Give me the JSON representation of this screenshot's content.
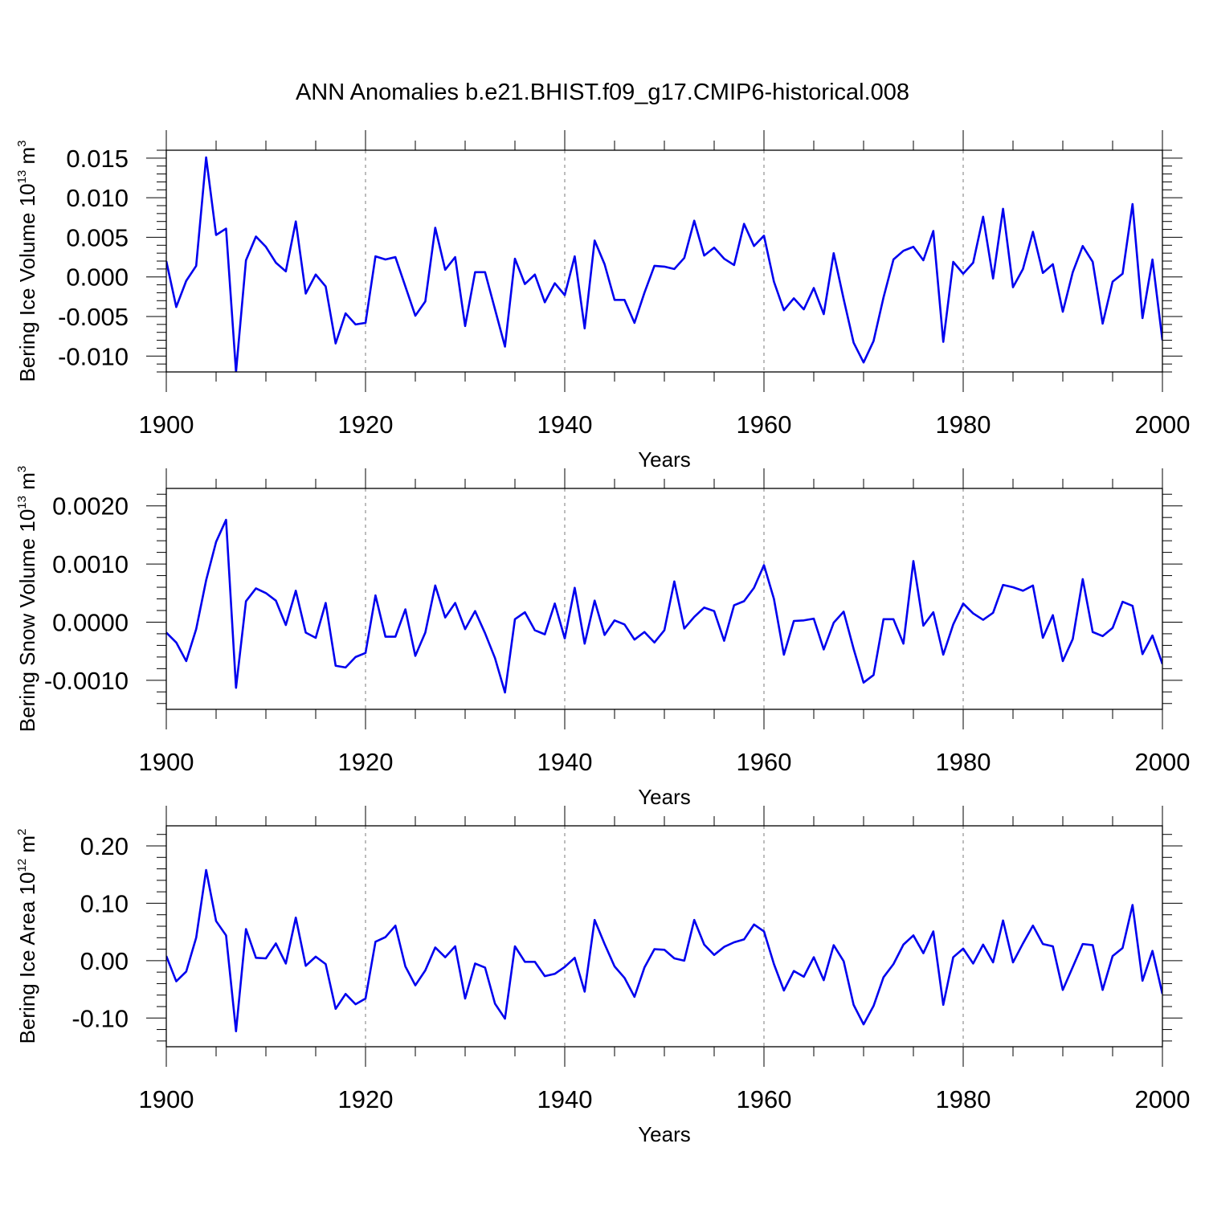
{
  "title": "ANN Anomalies b.e21.BHIST.f09_g17.CMIP6-historical.008",
  "line_color": "#0000ee",
  "chart_data": [
    {
      "type": "line",
      "ylabel": "Bering Ice Volume 10",
      "ylabel_exp": "13",
      "ylabel_unit": " m",
      "ylabel_unit_exp": "3",
      "xlabel": "Years",
      "xlim": [
        1900,
        2000
      ],
      "ylim": [
        -0.012,
        0.016
      ],
      "xticks": [
        "1900",
        "1920",
        "1940",
        "1960",
        "1980",
        "2000"
      ],
      "yticks": [
        {
          "value": 0.015,
          "label": "0.015"
        },
        {
          "value": 0.01,
          "label": "0.010"
        },
        {
          "value": 0.005,
          "label": "0.005"
        },
        {
          "value": 0.0,
          "label": "0.000"
        },
        {
          "value": -0.005,
          "label": "-0.005"
        },
        {
          "value": -0.01,
          "label": "-0.010"
        }
      ],
      "x_start": 1900,
      "values": [
        0.002,
        -0.0038,
        -0.0005,
        0.0014,
        0.0151,
        0.0053,
        0.0061,
        -0.012,
        0.0021,
        0.0051,
        0.0038,
        0.0018,
        0.0007,
        0.007,
        -0.0021,
        0.0003,
        -0.0012,
        -0.0084,
        -0.0046,
        -0.006,
        -0.0058,
        0.0026,
        0.0022,
        0.0025,
        -0.0012,
        -0.0049,
        -0.0031,
        0.0062,
        0.0009,
        0.0025,
        -0.0062,
        0.0006,
        0.0006,
        -0.0041,
        -0.0088,
        0.0023,
        -0.0009,
        0.0003,
        -0.0032,
        -0.0008,
        -0.0023,
        0.0026,
        -0.0065,
        0.0046,
        0.0016,
        -0.0029,
        -0.0029,
        -0.0058,
        -0.002,
        0.0014,
        0.0013,
        0.001,
        0.0024,
        0.0071,
        0.0027,
        0.0037,
        0.0023,
        0.0015,
        0.0067,
        0.0039,
        0.0052,
        -0.0006,
        -0.0042,
        -0.0027,
        -0.0041,
        -0.0014,
        -0.0047,
        0.003,
        -0.0028,
        -0.0083,
        -0.0108,
        -0.0081,
        -0.0026,
        0.0022,
        0.0033,
        0.0038,
        0.0021,
        0.0058,
        -0.0082,
        0.0019,
        0.0004,
        0.0018,
        0.0076,
        -0.0002,
        0.0086,
        -0.0013,
        0.001,
        0.0057,
        0.0005,
        0.0016,
        -0.0044,
        0.0006,
        0.0039,
        0.0019,
        -0.0059,
        -0.0006,
        0.0004,
        0.0092,
        -0.0052,
        0.0022,
        -0.008
      ]
    },
    {
      "type": "line",
      "ylabel": "Bering Snow Volume 10",
      "ylabel_exp": "13",
      "ylabel_unit": " m",
      "ylabel_unit_exp": "3",
      "xlabel": "Years",
      "xlim": [
        1900,
        2000
      ],
      "ylim": [
        -0.0015,
        0.0023
      ],
      "xticks": [
        "1900",
        "1920",
        "1940",
        "1960",
        "1980",
        "2000"
      ],
      "yticks": [
        {
          "value": 0.002,
          "label": "0.0020"
        },
        {
          "value": 0.001,
          "label": "0.0010"
        },
        {
          "value": 0.0,
          "label": "0.0000"
        },
        {
          "value": -0.001,
          "label": "-0.0010"
        }
      ],
      "x_start": 1900,
      "values": [
        -0.00018,
        -0.00035,
        -0.00067,
        -0.00012,
        0.00072,
        0.00138,
        0.00176,
        -0.00113,
        0.00036,
        0.00058,
        0.0005,
        0.00037,
        -5e-05,
        0.00054,
        -0.00018,
        -0.00027,
        0.00033,
        -0.00075,
        -0.00078,
        -0.0006,
        -0.00053,
        0.00046,
        -0.00025,
        -0.00025,
        0.00022,
        -0.00058,
        -0.00018,
        0.00063,
        8e-05,
        0.00033,
        -0.00012,
        0.00019,
        -0.00019,
        -0.00062,
        -0.00121,
        5e-05,
        0.00017,
        -0.00014,
        -0.00021,
        0.00032,
        -0.00028,
        0.00059,
        -0.00037,
        0.00037,
        -0.00022,
        3e-05,
        -4e-05,
        -0.0003,
        -0.00017,
        -0.00035,
        -0.00014,
        0.0007,
        -0.00011,
        9e-05,
        0.00025,
        0.00019,
        -0.00032,
        0.00029,
        0.00036,
        0.00059,
        0.00098,
        0.0004,
        -0.00056,
        2e-05,
        3e-05,
        6e-05,
        -0.00047,
        -1e-05,
        0.00018,
        -0.00046,
        -0.00104,
        -0.00091,
        5e-05,
        5e-05,
        -0.00037,
        0.00105,
        -6e-05,
        0.00017,
        -0.00056,
        -4e-05,
        0.00032,
        0.00015,
        4e-05,
        0.00016,
        0.00064,
        0.0006,
        0.00054,
        0.00063,
        -0.00027,
        0.00012,
        -0.00067,
        -0.00029,
        0.00074,
        -0.00017,
        -0.00024,
        -0.0001,
        0.00035,
        0.00028,
        -0.00055,
        -0.00023,
        -0.00072
      ]
    },
    {
      "type": "line",
      "ylabel": "Bering Ice Area 10",
      "ylabel_exp": "12",
      "ylabel_unit": " m",
      "ylabel_unit_exp": "2",
      "xlabel": "Years",
      "xlim": [
        1900,
        2000
      ],
      "ylim": [
        -0.15,
        0.235
      ],
      "xticks": [
        "1900",
        "1920",
        "1940",
        "1960",
        "1980",
        "2000"
      ],
      "yticks": [
        {
          "value": 0.2,
          "label": "0.20"
        },
        {
          "value": 0.1,
          "label": "0.10"
        },
        {
          "value": 0.0,
          "label": "0.00"
        },
        {
          "value": -0.1,
          "label": "-0.10"
        }
      ],
      "x_start": 1900,
      "values": [
        0.008,
        -0.036,
        -0.019,
        0.04,
        0.158,
        0.069,
        0.044,
        -0.123,
        0.055,
        0.005,
        0.004,
        0.03,
        -0.005,
        0.075,
        -0.009,
        0.007,
        -0.006,
        -0.084,
        -0.058,
        -0.076,
        -0.066,
        0.033,
        0.041,
        0.061,
        -0.01,
        -0.043,
        -0.017,
        0.023,
        0.006,
        0.025,
        -0.066,
        -0.005,
        -0.012,
        -0.075,
        -0.101,
        0.025,
        -0.002,
        -0.002,
        -0.027,
        -0.023,
        -0.011,
        0.005,
        -0.054,
        0.071,
        0.029,
        -0.01,
        -0.03,
        -0.063,
        -0.012,
        0.02,
        0.019,
        0.004,
        0.0,
        0.071,
        0.028,
        0.01,
        0.024,
        0.032,
        0.037,
        0.063,
        0.051,
        -0.006,
        -0.052,
        -0.018,
        -0.028,
        0.006,
        -0.034,
        0.027,
        -0.001,
        -0.077,
        -0.111,
        -0.079,
        -0.029,
        -0.006,
        0.028,
        0.044,
        0.013,
        0.051,
        -0.077,
        0.006,
        0.021,
        -0.005,
        0.028,
        -0.003,
        0.07,
        -0.003,
        0.03,
        0.061,
        0.029,
        0.025,
        -0.051,
        -0.011,
        0.029,
        0.027,
        -0.051,
        0.008,
        0.022,
        0.097,
        -0.035,
        0.017,
        -0.058
      ]
    }
  ]
}
